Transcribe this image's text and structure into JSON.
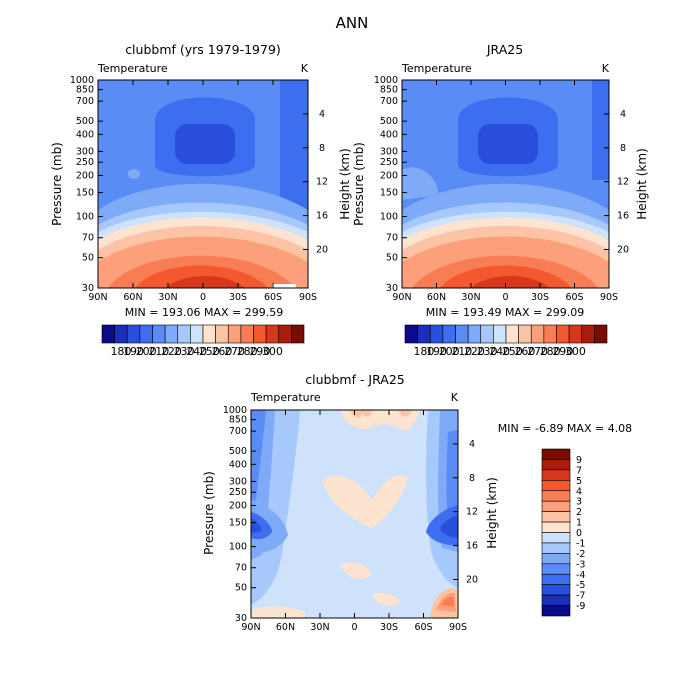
{
  "figure": {
    "title": "ANN"
  },
  "colors": {
    "abs_palette": [
      "#0a0a8c",
      "#1a2fb8",
      "#2a4fdc",
      "#3e6ef0",
      "#5a8cf6",
      "#7eaaf8",
      "#a6c8fa",
      "#cfe2fc",
      "#fde4d0",
      "#fcc3a4",
      "#fba07a",
      "#f87d52",
      "#f2592e",
      "#d8381a",
      "#a81c0c",
      "#7a0a04"
    ],
    "diff_palette": [
      "#0a0a8c",
      "#1a2fb8",
      "#2a4fdc",
      "#3e6ef0",
      "#5a8cf6",
      "#7eaaf8",
      "#a6c8fa",
      "#cfe2fc",
      "#fde4d0",
      "#fcc3a4",
      "#fba07a",
      "#f87d52",
      "#f2592e",
      "#d8381a",
      "#a81c0c",
      "#7a0a04"
    ]
  },
  "panels": {
    "p1": {
      "title": "clubbmf (yrs 1979-1979)",
      "left_label": "Temperature",
      "right_label": "K",
      "minmax": "MIN = 193.06   MAX = 299.59"
    },
    "p2": {
      "title": "JRA25",
      "left_label": "Temperature",
      "right_label": "K",
      "minmax": "MIN = 193.49   MAX = 299.09"
    },
    "p3": {
      "title": "clubbmf - JRA25",
      "left_label": "Temperature",
      "right_label": "K",
      "minmax": "MIN =  -6.89   MAX =    4.08"
    }
  },
  "chart_data": [
    {
      "type": "heatmap",
      "title": "clubbmf (yrs 1979-1979)",
      "ylabel": "Pressure (mb)",
      "y2label": "Height (km)",
      "x_ticks": [
        "90N",
        "60N",
        "30N",
        "0",
        "30S",
        "60S",
        "90S"
      ],
      "y_ticks": [
        1000,
        850,
        700,
        500,
        400,
        300,
        250,
        200,
        150,
        100,
        70,
        50,
        30
      ],
      "y2_ticks": [
        4,
        8,
        12,
        16,
        20
      ],
      "colorbar_labels": [
        "180",
        "190",
        "200",
        "210",
        "220",
        "230",
        "240",
        "250",
        "260",
        "270",
        "280",
        "290",
        "300"
      ],
      "min": 193.06,
      "max": 299.59,
      "units": "K"
    },
    {
      "type": "heatmap",
      "title": "JRA25",
      "ylabel": "Pressure (mb)",
      "y2label": "Height (km)",
      "x_ticks": [
        "90N",
        "60N",
        "30N",
        "0",
        "30S",
        "60S",
        "90S"
      ],
      "y_ticks": [
        1000,
        850,
        700,
        500,
        400,
        300,
        250,
        200,
        150,
        100,
        70,
        50,
        30
      ],
      "y2_ticks": [
        4,
        8,
        12,
        16,
        20
      ],
      "colorbar_labels": [
        "180",
        "190",
        "200",
        "210",
        "220",
        "230",
        "240",
        "250",
        "260",
        "270",
        "280",
        "290",
        "300"
      ],
      "min": 193.49,
      "max": 299.09,
      "units": "K"
    },
    {
      "type": "heatmap",
      "title": "clubbmf - JRA25",
      "ylabel": "Pressure (mb)",
      "y2label": "Height (km)",
      "x_ticks": [
        "90N",
        "60N",
        "30N",
        "0",
        "30S",
        "60S",
        "90S"
      ],
      "y_ticks": [
        1000,
        850,
        700,
        500,
        400,
        300,
        250,
        200,
        150,
        100,
        70,
        50,
        30
      ],
      "y2_ticks": [
        4,
        8,
        12,
        16,
        20
      ],
      "colorbar_labels": [
        "9",
        "7",
        "5",
        "4",
        "3",
        "2",
        "1",
        "0",
        "-1",
        "-2",
        "-3",
        "-4",
        "-5",
        "-7",
        "-9"
      ],
      "min": -6.89,
      "max": 4.08,
      "units": "K"
    }
  ]
}
